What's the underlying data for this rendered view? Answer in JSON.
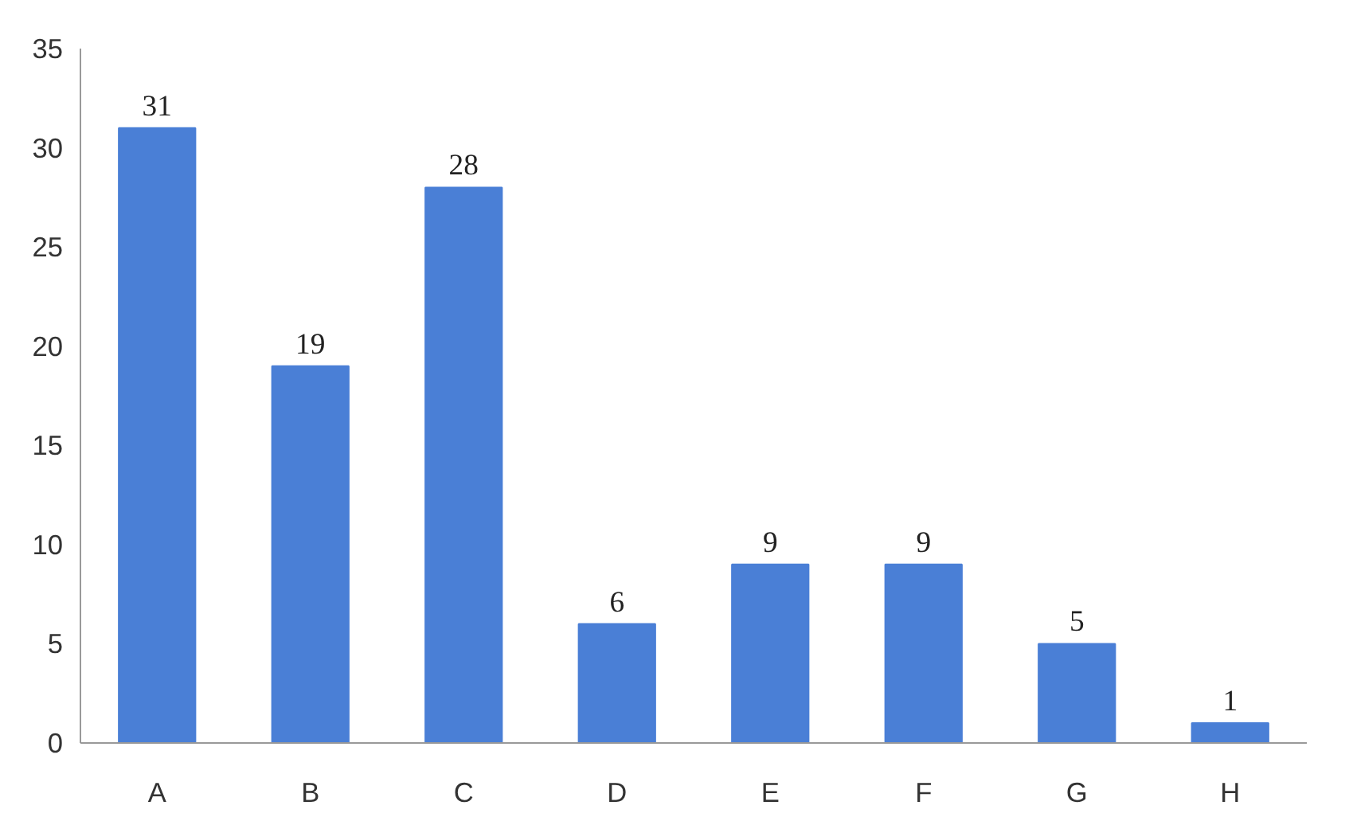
{
  "chart_data": {
    "type": "bar",
    "categories": [
      "A",
      "B",
      "C",
      "D",
      "E",
      "F",
      "G",
      "H"
    ],
    "values": [
      31,
      19,
      28,
      6,
      9,
      9,
      5,
      1
    ],
    "color": "#4a7fd6",
    "ylim": [
      0,
      35
    ],
    "yticks": [
      0,
      5,
      10,
      15,
      20,
      25,
      30,
      35
    ],
    "grid": false,
    "data_labels": true
  }
}
